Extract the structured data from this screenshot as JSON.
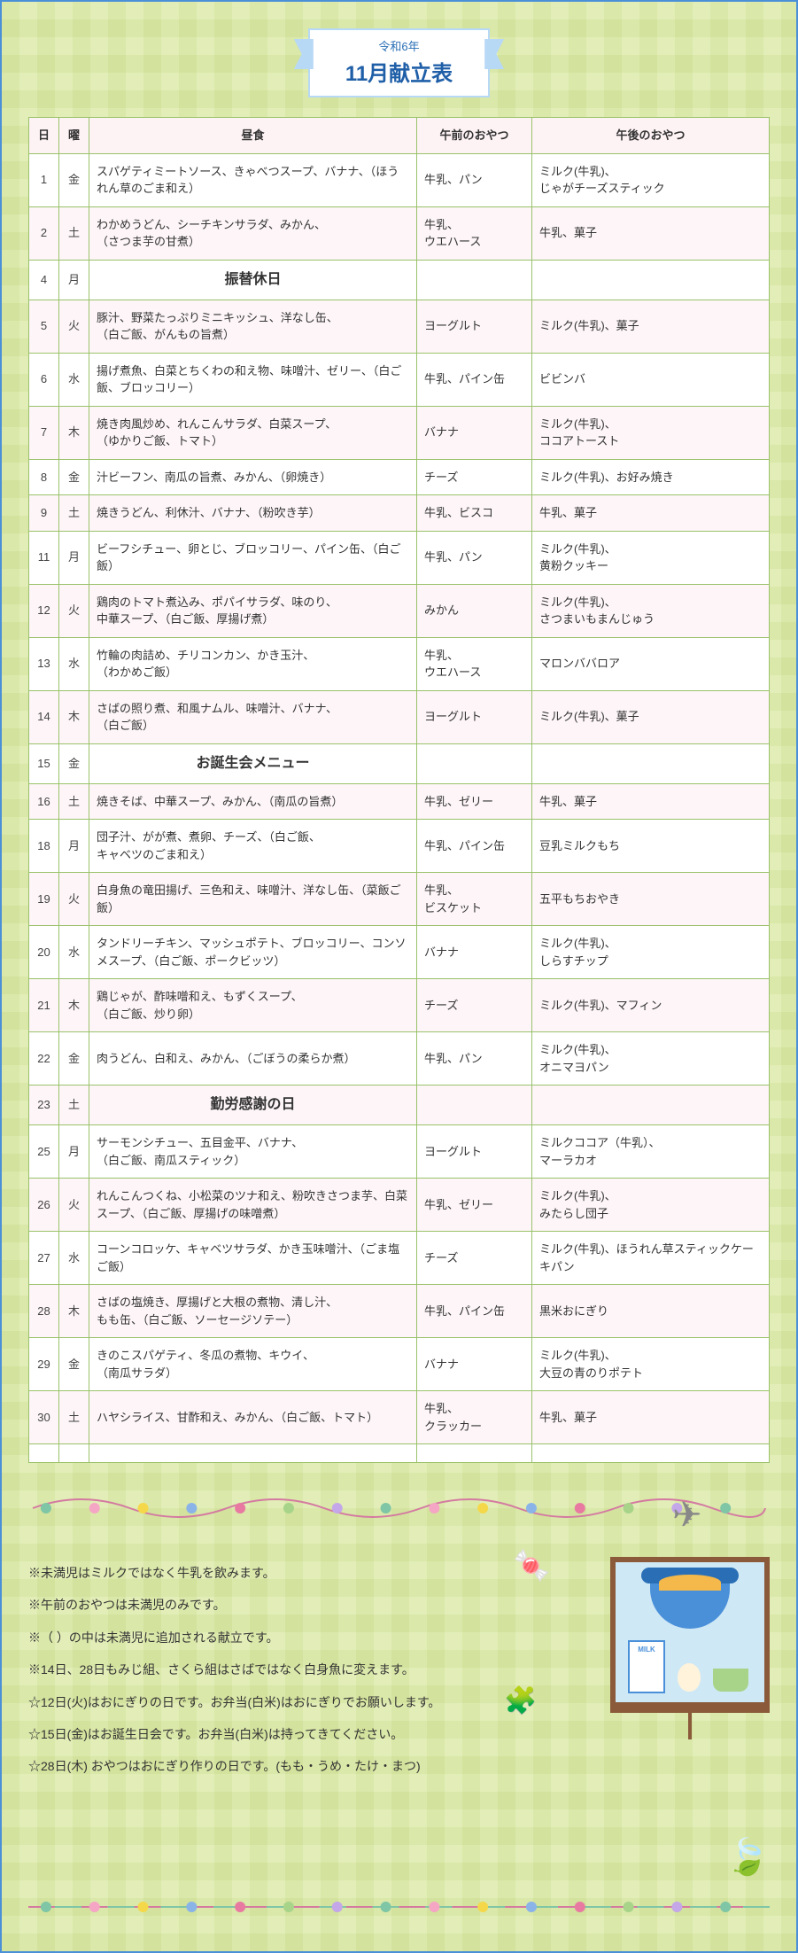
{
  "header": {
    "year_line": "令和6年",
    "title_line": "11月献立表"
  },
  "columns": {
    "day": "日",
    "dow": "曜",
    "lunch": "昼食",
    "am_snack": "午前のおやつ",
    "pm_snack": "午後のおやつ"
  },
  "colors": {
    "border_green": "#9ac26a",
    "header_pink": "#fdf2f4",
    "row_alt_pink": "#fdf5f7",
    "gingham_a": "#e8f0c8",
    "gingham_b": "#f0f6d8",
    "ribbon_border": "#b8d9f5",
    "ribbon_text": "#1f5fa8",
    "special_red": "#e24a6a",
    "special_blue": "#2a7ed3",
    "special_green": "#2aa86a"
  },
  "rows": [
    {
      "day": "1",
      "dow": "金",
      "lunch": "スパゲティミートソース、きゃべつスープ、バナナ、（ほうれん草のごま和え）",
      "am": "牛乳、パン",
      "pm": "ミルク(牛乳)、\nじゃがチーズスティック",
      "alt": false
    },
    {
      "day": "2",
      "dow": "土",
      "lunch": "わかめうどん、シーチキンサラダ、みかん、\n（さつま芋の甘煮）",
      "am": "牛乳、\nウエハース",
      "pm": "牛乳、菓子",
      "alt": true
    },
    {
      "day": "4",
      "dow": "月",
      "lunch": "振替休日",
      "am": "",
      "pm": "",
      "alt": false,
      "special": "red"
    },
    {
      "day": "5",
      "dow": "火",
      "lunch": "豚汁、野菜たっぷりミニキッシュ、洋なし缶、\n（白ご飯、がんもの旨煮）",
      "am": "ヨーグルト",
      "pm": "ミルク(牛乳)、菓子",
      "alt": true
    },
    {
      "day": "6",
      "dow": "水",
      "lunch": "揚げ煮魚、白菜とちくわの和え物、味噌汁、ゼリー、（白ご飯、ブロッコリー）",
      "am": "牛乳、パイン缶",
      "pm": "ビビンバ",
      "alt": false
    },
    {
      "day": "7",
      "dow": "木",
      "lunch": "焼き肉風炒め、れんこんサラダ、白菜スープ、\n（ゆかりご飯、トマト）",
      "am": "バナナ",
      "pm": "ミルク(牛乳)、\nココアトースト",
      "alt": true
    },
    {
      "day": "8",
      "dow": "金",
      "lunch": "汁ビーフン、南瓜の旨煮、みかん、（卵焼き）",
      "am": "チーズ",
      "pm": "ミルク(牛乳)、お好み焼き",
      "alt": false
    },
    {
      "day": "9",
      "dow": "土",
      "lunch": "焼きうどん、利休汁、バナナ、（粉吹き芋）",
      "am": "牛乳、ビスコ",
      "pm": "牛乳、菓子",
      "alt": true
    },
    {
      "day": "11",
      "dow": "月",
      "lunch": "ビーフシチュー、卵とじ、ブロッコリー、パイン缶、（白ご飯）",
      "am": "牛乳、パン",
      "pm": "ミルク(牛乳)、\n黄粉クッキー",
      "alt": false
    },
    {
      "day": "12",
      "dow": "火",
      "lunch": "鶏肉のトマト煮込み、ポパイサラダ、味のり、\n中華スープ、（白ご飯、厚揚げ煮）",
      "am": "みかん",
      "pm": "ミルク(牛乳)、\nさつまいもまんじゅう",
      "alt": true
    },
    {
      "day": "13",
      "dow": "水",
      "lunch": "竹輪の肉詰め、チリコンカン、かき玉汁、\n（わかめご飯）",
      "am": "牛乳、\nウエハース",
      "pm": "マロンババロア",
      "alt": false
    },
    {
      "day": "14",
      "dow": "木",
      "lunch": "さばの照り煮、和風ナムル、味噌汁、バナナ、\n（白ご飯）",
      "am": "ヨーグルト",
      "pm": "ミルク(牛乳)、菓子",
      "alt": true
    },
    {
      "day": "15",
      "dow": "金",
      "lunch": "お誕生会メニュー",
      "am": "",
      "pm": "",
      "alt": false,
      "special": "blue"
    },
    {
      "day": "16",
      "dow": "土",
      "lunch": "焼きそば、中華スープ、みかん、（南瓜の旨煮）",
      "am": "牛乳、ゼリー",
      "pm": "牛乳、菓子",
      "alt": true
    },
    {
      "day": "18",
      "dow": "月",
      "lunch": "団子汁、がが煮、煮卵、チーズ、（白ご飯、\nキャベツのごま和え）",
      "am": "牛乳、パイン缶",
      "pm": "豆乳ミルクもち",
      "alt": false
    },
    {
      "day": "19",
      "dow": "火",
      "lunch": "白身魚の竜田揚げ、三色和え、味噌汁、洋なし缶、（菜飯ご飯）",
      "am": "牛乳、\nビスケット",
      "pm": "五平もちおやき",
      "alt": true
    },
    {
      "day": "20",
      "dow": "水",
      "lunch": "タンドリーチキン、マッシュポテト、ブロッコリー、コンソメスープ、（白ご飯、ポークビッツ）",
      "am": "バナナ",
      "pm": "ミルク(牛乳)、\nしらすチップ",
      "alt": false
    },
    {
      "day": "21",
      "dow": "木",
      "lunch": "鶏じゃが、酢味噌和え、もずくスープ、\n（白ご飯、炒り卵）",
      "am": "チーズ",
      "pm": "ミルク(牛乳)、マフィン",
      "alt": true
    },
    {
      "day": "22",
      "dow": "金",
      "lunch": "肉うどん、白和え、みかん、（ごぼうの柔らか煮）",
      "am": "牛乳、パン",
      "pm": "ミルク(牛乳)、\nオニマヨパン",
      "alt": false
    },
    {
      "day": "23",
      "dow": "土",
      "lunch": "勤労感謝の日",
      "am": "",
      "pm": "",
      "alt": true,
      "special": "green"
    },
    {
      "day": "25",
      "dow": "月",
      "lunch": "サーモンシチュー、五目金平、バナナ、\n（白ご飯、南瓜スティック）",
      "am": "ヨーグルト",
      "pm": "ミルクココア（牛乳）、\nマーラカオ",
      "alt": false
    },
    {
      "day": "26",
      "dow": "火",
      "lunch": "れんこんつくね、小松菜のツナ和え、粉吹きさつま芋、白菜スープ、（白ご飯、厚揚げの味噌煮）",
      "am": "牛乳、ゼリー",
      "pm": "ミルク(牛乳)、\nみたらし団子",
      "alt": true
    },
    {
      "day": "27",
      "dow": "水",
      "lunch": "コーンコロッケ、キャベツサラダ、かき玉味噌汁、（ごま塩ご飯）",
      "am": "チーズ",
      "pm": "ミルク(牛乳)、ほうれん草スティックケーキパン",
      "alt": false
    },
    {
      "day": "28",
      "dow": "木",
      "lunch": "さばの塩焼き、厚揚げと大根の煮物、清し汁、\nもも缶、（白ご飯、ソーセージソテー）",
      "am": "牛乳、パイン缶",
      "pm": "黒米おにぎり",
      "alt": true
    },
    {
      "day": "29",
      "dow": "金",
      "lunch": "きのこスパゲティ、冬瓜の煮物、キウイ、\n（南瓜サラダ）",
      "am": "バナナ",
      "pm": "ミルク(牛乳)、\n大豆の青のりポテト",
      "alt": false
    },
    {
      "day": "30",
      "dow": "土",
      "lunch": "ハヤシライス、甘酢和え、みかん、（白ご飯、トマト）",
      "am": "牛乳、\nクラッカー",
      "pm": "牛乳、菓子",
      "alt": true
    },
    {
      "day": "",
      "dow": "",
      "lunch": "",
      "am": "",
      "pm": "",
      "alt": false
    }
  ],
  "notes": [
    "※未満児はミルクではなく牛乳を飲みます。",
    "※午前のおやつは未満児のみです。",
    "※（ ）の中は未満児に追加される献立です。",
    "※14日、28日もみじ組、さくら組はさばではなく白身魚に変えます。",
    "☆12日(火)はおにぎりの日です。お弁当(白米)はおにぎりでお願いします。",
    "☆15日(金)はお誕生日会です。お弁当(白米)は持ってきてください。",
    "☆28日(木) おやつはおにぎり作りの日です。(もも・うめ・たけ・まつ)"
  ],
  "decor": {
    "bead_colors": [
      "#7ec6a5",
      "#f5a6c4",
      "#f5d84a",
      "#8ab4e8",
      "#e87aa1",
      "#a7d489",
      "#c4a7e8"
    ]
  }
}
